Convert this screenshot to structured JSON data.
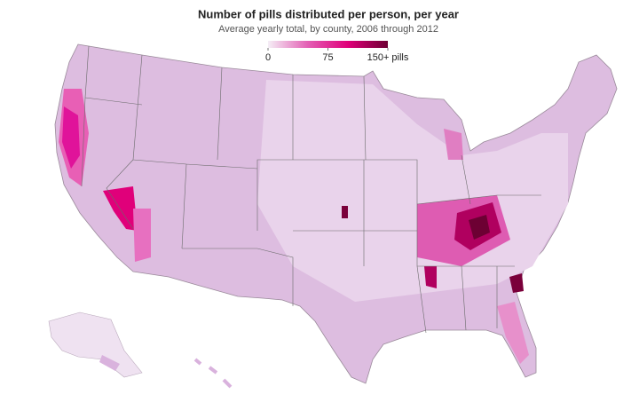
{
  "title": "Number of pills distributed per person, per year",
  "subtitle": "Average yearly total, by county, 2006 through 2012",
  "legend": {
    "range": [
      0,
      150
    ],
    "ticks": [
      0,
      75,
      {
        "value": 150,
        "label": "150+ pills"
      }
    ],
    "colors": [
      "#f5eef6",
      "#e35fb4",
      "#e0007a",
      "#6d0033"
    ]
  }
}
